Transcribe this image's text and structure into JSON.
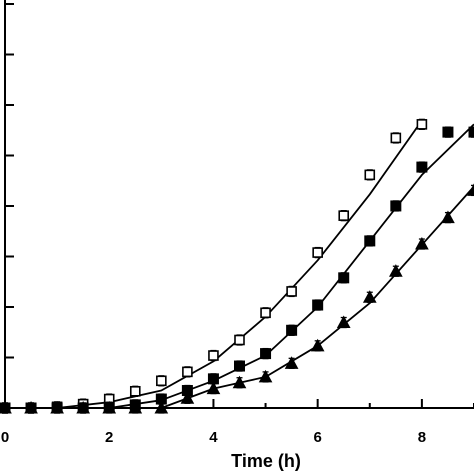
{
  "chart_data": {
    "type": "scatter",
    "xlabel": "Time (h)",
    "ylabel": "",
    "xlim": [
      0,
      9
    ],
    "ylim": [
      0,
      1.05
    ],
    "xticks": [
      0,
      2,
      4,
      6,
      8
    ],
    "xtick_labels": [
      "0",
      "2",
      "4",
      "6",
      "8"
    ],
    "grid": false,
    "series": [
      {
        "marker": "open-square",
        "color": "#000000",
        "x": [
          0,
          0.5,
          1,
          1.5,
          2,
          2.5,
          3,
          3.5,
          4,
          4.5,
          5,
          5.5,
          6,
          6.5,
          7,
          7.5,
          8
        ],
        "y": [
          0.0,
          0.0,
          0.003,
          0.01,
          0.023,
          0.043,
          0.07,
          0.093,
          0.135,
          0.175,
          0.245,
          0.3,
          0.4,
          0.495,
          0.6,
          0.695,
          0.73
        ]
      },
      {
        "marker": "filled-square",
        "color": "#000000",
        "x": [
          0,
          0.5,
          1,
          1.5,
          2,
          2.5,
          3,
          3.5,
          4,
          4.5,
          5,
          5.5,
          6,
          6.5,
          7,
          7.5,
          8,
          8.5,
          9
        ],
        "y": [
          0.0,
          0.0,
          0.0,
          0.0,
          0.002,
          0.008,
          0.023,
          0.045,
          0.075,
          0.108,
          0.14,
          0.2,
          0.265,
          0.335,
          0.43,
          0.52,
          0.62,
          0.71,
          0.71
        ]
      },
      {
        "marker": "filled-triangle",
        "color": "#000000",
        "x": [
          0,
          0.5,
          1,
          1.5,
          2,
          2.5,
          3,
          3.5,
          4,
          4.5,
          5,
          5.5,
          6,
          6.5,
          7,
          7.5,
          8,
          8.5,
          9
        ],
        "y": [
          0.0,
          0.0,
          0.0,
          0.0,
          0.0,
          0.0,
          0.0,
          0.025,
          0.05,
          0.065,
          0.08,
          0.115,
          0.16,
          0.22,
          0.285,
          0.352,
          0.422,
          0.49,
          0.56
        ]
      }
    ],
    "fits": [
      {
        "x": [
          0,
          1,
          2,
          3,
          4,
          5,
          6,
          7,
          8
        ],
        "y": [
          0.0,
          0.0,
          0.015,
          0.045,
          0.12,
          0.235,
          0.38,
          0.55,
          0.74
        ]
      },
      {
        "x": [
          0,
          1,
          2,
          3,
          4,
          5,
          6,
          7,
          8,
          9
        ],
        "y": [
          0.0,
          0.0,
          0.0,
          0.02,
          0.07,
          0.135,
          0.26,
          0.43,
          0.6,
          0.73
        ]
      },
      {
        "x": [
          0,
          1,
          2,
          3,
          4,
          5,
          6,
          7,
          8,
          9
        ],
        "y": [
          0.0,
          0.0,
          0.0,
          0.0,
          0.05,
          0.08,
          0.16,
          0.27,
          0.42,
          0.57
        ]
      }
    ]
  }
}
